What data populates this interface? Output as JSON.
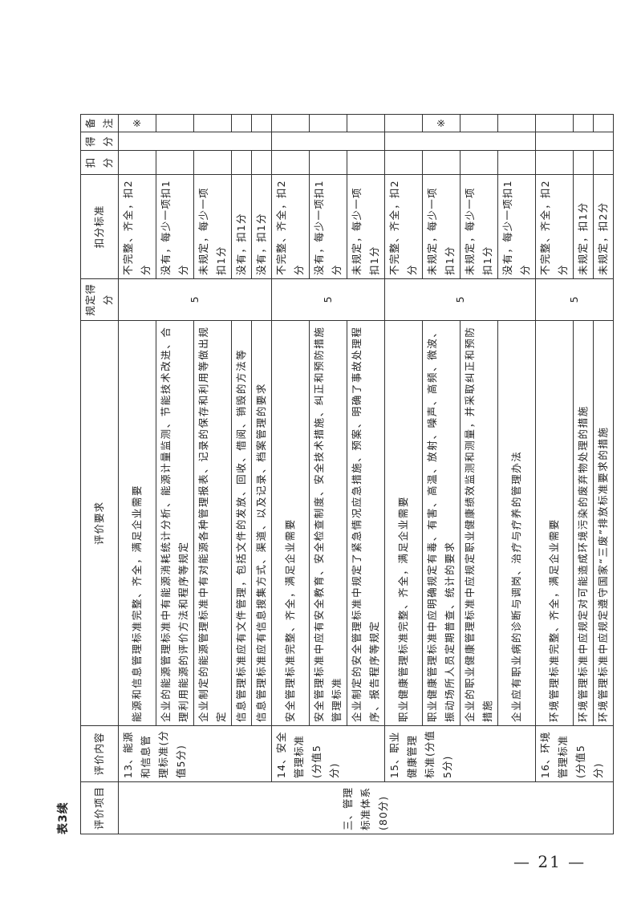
{
  "caption": "表3续",
  "headers": [
    "评价项目",
    "评价内容",
    "评价要求",
    "规定得分",
    "扣分标准",
    "扣分",
    "得分",
    "备注"
  ],
  "project": "三、管理标准体系(80分)",
  "sections": [
    {
      "content": "13、能源和信息管理标准(分值5分)",
      "score": "5",
      "rows": [
        {
          "req": "能源和信息管理标准完整、齐全，满足企业需要",
          "ded": "不完整、齐全，扣2分",
          "note": "※"
        },
        {
          "req": "企业的能源管理标准中有能源消耗统计分析、能源计量监测、节能技术改进、合理利用能源的评价方法和程序等规定",
          "ded": "没有，每少一项扣1分",
          "note": ""
        },
        {
          "req": "企业制定的能源管理标准中有对能源各种管理报表、记录的保存和利用等做出规定",
          "ded": "未规定，每少一项扣1分",
          "note": ""
        },
        {
          "req": "信息管理标准应有文件管理，包括文件的发放、回收、借阅、销毁的方法等",
          "ded": "没有，扣1分",
          "note": ""
        },
        {
          "req": "信息管理标准应有信息搜集方式、渠道、以及记录、档案管理的要求",
          "ded": "没有，扣1分",
          "note": ""
        }
      ]
    },
    {
      "content": "14、安全管理标准(分值5分)",
      "score": "5",
      "rows": [
        {
          "req": "安全管理标准完整、齐全，满足企业需要",
          "ded": "不完整、齐全，扣2分",
          "note": ""
        },
        {
          "req": "安全管理标准中应有安全教育、安全检查制度、安全技术措施、纠正和预防措施管理标准",
          "ded": "没有，每少一项扣1分",
          "note": ""
        },
        {
          "req": "企业制定的安全管理标准中规定了紧急情况应急措施、预案、明确了事故处理程序、报告程序等规定",
          "ded": "未规定，每少一项扣1分",
          "note": ""
        }
      ]
    },
    {
      "content": "15、职业健康管理标准(分值5分)",
      "score": "5",
      "rows": [
        {
          "req": "职业健康管理标准完整、齐全，满足企业需要",
          "ded": "不完整、齐全，扣2分",
          "note": ""
        },
        {
          "req": "职业健康管理标准中应明确规定有毒、有害、高温、放射、噪声、高频、微波、振动场所人员定期普查、统计的要求",
          "ded": "未规定，每少一项扣1分",
          "note": "※"
        },
        {
          "req": "企业的职业健康管理标准中应规定职业健康绩效监测和测量，并采取纠正和预防措施",
          "ded": "未规定，每少一项扣1分",
          "note": ""
        },
        {
          "req": "企业应有职业病的诊断与调岗、治疗与疗养的管理办法",
          "ded": "没有，每少一项扣1分",
          "note": ""
        }
      ]
    },
    {
      "content": "16、环境管理标准(分值5分)",
      "score": "5",
      "rows": [
        {
          "req": "环境管理标准完整、齐全，满足企业需要",
          "ded": "不完整、齐全，扣2分",
          "note": ""
        },
        {
          "req": "环境管理标准中应规定对可能造成环境污染的废弃物处理的措施",
          "ded": "未规定，扣1分",
          "note": ""
        },
        {
          "req": "环境管理标准中应规定遵守国家“三废”排放标准要求的措施",
          "ded": "未规定，扣2分",
          "note": ""
        }
      ]
    }
  ],
  "page_number": "— 21 —"
}
